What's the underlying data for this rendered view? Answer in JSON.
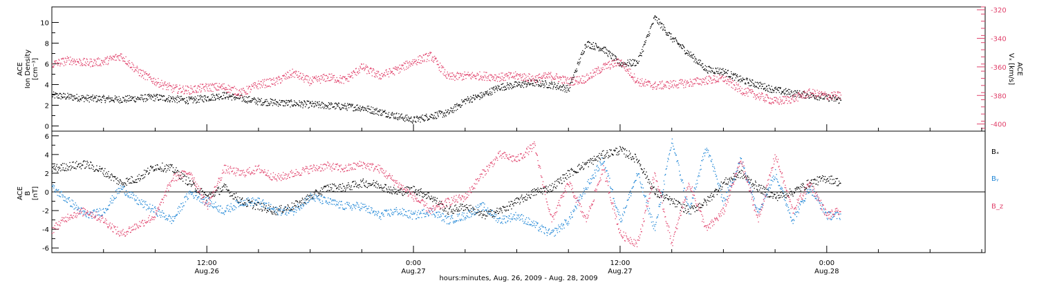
{
  "colors": {
    "black": "#000000",
    "red": "#e0406a",
    "blue": "#1f86d6"
  },
  "x_axis": {
    "title": "hours:minutes, Aug. 26, 2009 - Aug. 28, 2009",
    "range_hours": [
      0,
      54.2
    ],
    "major_ticks": [
      {
        "hour": 9,
        "time": "12:00",
        "date": "Aug.26"
      },
      {
        "hour": 21,
        "time": "0:00",
        "date": "Aug.27"
      },
      {
        "hour": 33,
        "time": "12:00",
        "date": "Aug.27"
      },
      {
        "hour": 45,
        "time": "0:00",
        "date": "Aug.28"
      }
    ]
  },
  "chart_data": [
    {
      "type": "scatter",
      "panel": "top",
      "ylabel": [
        "ACE",
        "Ion Density",
        "[cm⁻³]"
      ],
      "ylim": [
        -0.5,
        11.5
      ],
      "yticks": [
        0,
        2,
        4,
        6,
        8,
        10
      ],
      "y2label": [
        "ACE",
        "Vₓ [km/s]"
      ],
      "y2lim": [
        -405,
        -318
      ],
      "y2ticks": [
        -320,
        -340,
        -360,
        -380,
        -400
      ],
      "grid": false,
      "series": [
        {
          "color": "black",
          "axis": "left",
          "x": [
            0,
            2,
            4,
            6,
            8,
            10,
            12,
            14,
            16,
            18,
            19.5,
            21,
            22,
            23,
            24,
            25,
            26,
            27,
            28,
            29,
            30,
            31,
            32,
            33,
            34,
            35,
            36,
            37,
            38,
            39,
            40,
            41,
            42,
            43,
            44,
            45,
            45.8
          ],
          "y": [
            3.0,
            2.7,
            2.6,
            2.8,
            2.5,
            3.0,
            2.4,
            2.2,
            2.0,
            1.8,
            1.2,
            0.6,
            1.0,
            1.3,
            2.5,
            3.0,
            3.8,
            4.0,
            4.2,
            4.0,
            3.6,
            8.0,
            7.5,
            6.0,
            6.2,
            10.5,
            8.5,
            7.0,
            5.5,
            5.3,
            4.5,
            4.0,
            3.5,
            3.2,
            3.0,
            2.8,
            2.5
          ]
        },
        {
          "color": "red",
          "axis": "right",
          "x": [
            0,
            1,
            2,
            3,
            4,
            5,
            6,
            7,
            8,
            9,
            10,
            11,
            12,
            13,
            14,
            15,
            16,
            17,
            18,
            19,
            20,
            21,
            22,
            23,
            24,
            25,
            26,
            27,
            28,
            29,
            30,
            31,
            32,
            33,
            34,
            35,
            36,
            37,
            38,
            39,
            40,
            41,
            42,
            43,
            44,
            45,
            45.8
          ],
          "y": [
            -358,
            -355,
            -357,
            -356,
            -352,
            -363,
            -370,
            -375,
            -376,
            -374,
            -374,
            -378,
            -372,
            -370,
            -364,
            -370,
            -367,
            -369,
            -360,
            -366,
            -362,
            -356,
            -352,
            -367,
            -366,
            -366,
            -367,
            -366,
            -368,
            -366,
            -370,
            -368,
            -360,
            -356,
            -370,
            -373,
            -372,
            -371,
            -369,
            -368,
            -376,
            -380,
            -384,
            -382,
            -378,
            -380,
            -380
          ]
        }
      ]
    },
    {
      "type": "scatter",
      "panel": "bottom",
      "ylabel": [
        "ACE",
        "B",
        "[nT]"
      ],
      "ylim": [
        -6.5,
        6.5
      ],
      "yticks": [
        6,
        4,
        2,
        0,
        -2,
        -4,
        -6
      ],
      "zero_line": true,
      "grid": false,
      "legend_position": "right",
      "series": [
        {
          "name": "Bₓ",
          "color": "black",
          "x": [
            0,
            1,
            2,
            3,
            4,
            5,
            6,
            7,
            8,
            9,
            10,
            11,
            12,
            13,
            14,
            15,
            16,
            17,
            18,
            19,
            20,
            21,
            22,
            23,
            24,
            25,
            26,
            27,
            28,
            29,
            30,
            31,
            32,
            33,
            34,
            35,
            36,
            37,
            38,
            39,
            40,
            41,
            42,
            43,
            44,
            45,
            45.8
          ],
          "y": [
            2.5,
            2.8,
            3.0,
            2.2,
            1.0,
            1.5,
            2.8,
            2.5,
            1.0,
            -0.5,
            0.5,
            -1.0,
            -1.5,
            -2.0,
            -1.5,
            -0.5,
            0.5,
            0.5,
            1.0,
            0.8,
            0.0,
            0.3,
            -0.5,
            -2.0,
            -1.5,
            -2.5,
            -2.0,
            -1.0,
            0.0,
            0.5,
            2.0,
            3.0,
            4.0,
            4.5,
            3.5,
            0.0,
            -1.0,
            -2.0,
            -1.0,
            1.0,
            2.0,
            0.5,
            -0.5,
            0.0,
            1.0,
            1.5,
            1.0
          ]
        },
        {
          "name": "Bᵧ",
          "color": "blue",
          "x": [
            0,
            1,
            2,
            3,
            4,
            5,
            6,
            7,
            8,
            9,
            10,
            11,
            12,
            13,
            14,
            15,
            16,
            17,
            18,
            19,
            20,
            21,
            22,
            23,
            24,
            25,
            26,
            27,
            28,
            29,
            30,
            31,
            32,
            33,
            34,
            35,
            36,
            37,
            38,
            39,
            40,
            41,
            42,
            43,
            44,
            45,
            45.8
          ],
          "y": [
            0.5,
            -1.0,
            -2.5,
            -2.0,
            0.5,
            -1.0,
            -2.0,
            -3.0,
            0.0,
            -1.0,
            -2.0,
            -1.0,
            -1.0,
            -2.0,
            -2.0,
            -0.5,
            -1.0,
            -1.5,
            -1.5,
            -2.5,
            -2.0,
            -2.5,
            -2.0,
            -3.0,
            -2.5,
            -1.5,
            -3.0,
            -2.5,
            -3.5,
            -4.5,
            -3.0,
            0.5,
            3.5,
            -3.0,
            2.0,
            -4.0,
            5.5,
            -2.0,
            5.0,
            -1.0,
            3.5,
            -2.0,
            2.0,
            -3.0,
            0.5,
            -2.5,
            -2.5
          ]
        },
        {
          "name": "B_z",
          "color": "red",
          "x": [
            0,
            1,
            2,
            3,
            4,
            5,
            6,
            7,
            8,
            9,
            10,
            11,
            12,
            13,
            14,
            15,
            16,
            17,
            18,
            19,
            20,
            21,
            22,
            23,
            24,
            25,
            26,
            27,
            28,
            29,
            30,
            31,
            32,
            33,
            34,
            35,
            36,
            37,
            38,
            39,
            40,
            41,
            42,
            43,
            44,
            45,
            45.8
          ],
          "y": [
            -4.0,
            -2.5,
            -2.0,
            -3.0,
            -4.5,
            -3.5,
            -2.5,
            1.5,
            2.2,
            -1.5,
            2.5,
            2.0,
            2.5,
            1.5,
            2.0,
            2.5,
            2.8,
            2.5,
            3.0,
            2.5,
            1.0,
            -0.5,
            -2.0,
            -1.0,
            -0.5,
            2.0,
            4.0,
            3.5,
            5.0,
            -3.0,
            1.0,
            -3.0,
            2.5,
            -4.5,
            -5.5,
            2.0,
            -5.5,
            1.0,
            -4.0,
            -2.0,
            3.5,
            -3.0,
            4.0,
            -2.0,
            1.0,
            -2.5,
            -2.0
          ]
        }
      ]
    }
  ]
}
